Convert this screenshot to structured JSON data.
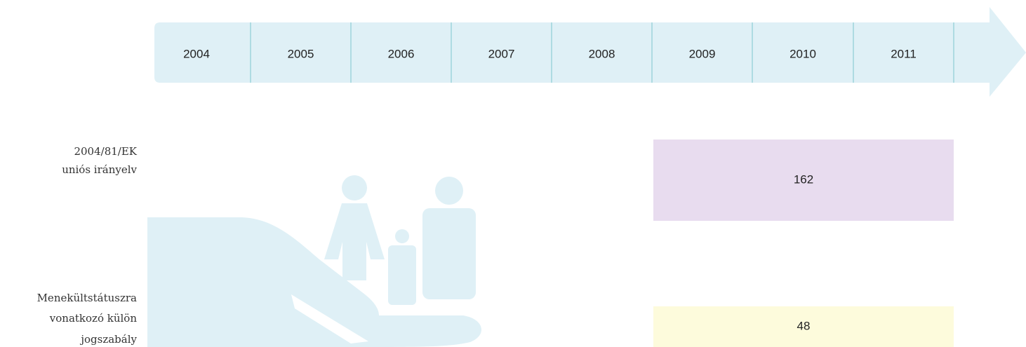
{
  "timeline": {
    "years": [
      "2004",
      "2005",
      "2006",
      "2007",
      "2008",
      "2009",
      "2010",
      "2011"
    ]
  },
  "rows": [
    {
      "label_lines": [
        "2004/81/EK",
        "uniós irányelv"
      ],
      "value": "162"
    },
    {
      "label_lines": [
        "Menekültstátuszra",
        "vonatkozó külön",
        "jogszabály"
      ],
      "value": "48"
    }
  ]
}
